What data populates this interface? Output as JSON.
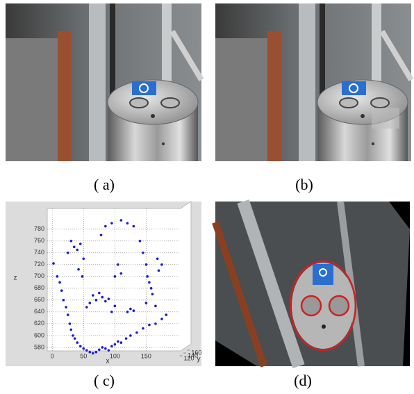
{
  "figure": {
    "captions": [
      "( a)",
      "(b)",
      "( c)",
      "(d)"
    ]
  },
  "chart_data": {
    "type": "scatter",
    "xlabel": "x",
    "ylabel": "z",
    "depth_label": "y",
    "x": [
      2,
      8,
      12,
      15,
      18,
      22,
      25,
      28,
      30,
      33,
      36,
      40,
      45,
      50,
      55,
      60,
      65,
      70,
      75,
      80,
      85,
      90,
      95,
      100,
      105,
      110,
      118,
      125,
      135,
      145,
      155,
      165,
      175,
      182,
      60,
      65,
      70,
      75,
      80,
      85,
      90,
      55,
      95,
      100,
      30,
      35,
      40,
      45,
      25,
      50,
      42,
      48,
      140,
      145,
      150,
      152,
      155,
      158,
      160,
      150,
      165,
      170,
      175,
      168,
      85,
      95,
      110,
      120,
      130,
      78,
      120,
      125,
      130,
      110,
      105,
      100
    ],
    "values": [
      722,
      700,
      690,
      676,
      660,
      648,
      635,
      620,
      610,
      600,
      595,
      588,
      582,
      578,
      575,
      572,
      570,
      572,
      576,
      580,
      578,
      575,
      582,
      585,
      590,
      588,
      595,
      600,
      605,
      612,
      618,
      620,
      628,
      635,
      655,
      668,
      660,
      672,
      665,
      658,
      662,
      648,
      640,
      650,
      760,
      750,
      745,
      755,
      740,
      730,
      712,
      700,
      760,
      740,
      720,
      700,
      690,
      680,
      670,
      655,
      650,
      710,
      720,
      730,
      785,
      790,
      795,
      790,
      785,
      770,
      640,
      645,
      642,
      705,
      720,
      700
    ],
    "color": "#1a1ad6",
    "xlim": [
      -8,
      205
    ],
    "xticks": [
      0,
      50,
      100,
      150
    ],
    "ylim": [
      574,
      815
    ],
    "yticks": [
      580,
      600,
      620,
      640,
      660,
      680,
      700,
      720,
      740,
      760,
      780
    ],
    "depth_lim": [
      110,
      170
    ],
    "depth_ticks": [
      120,
      140,
      160
    ],
    "grid": true
  }
}
